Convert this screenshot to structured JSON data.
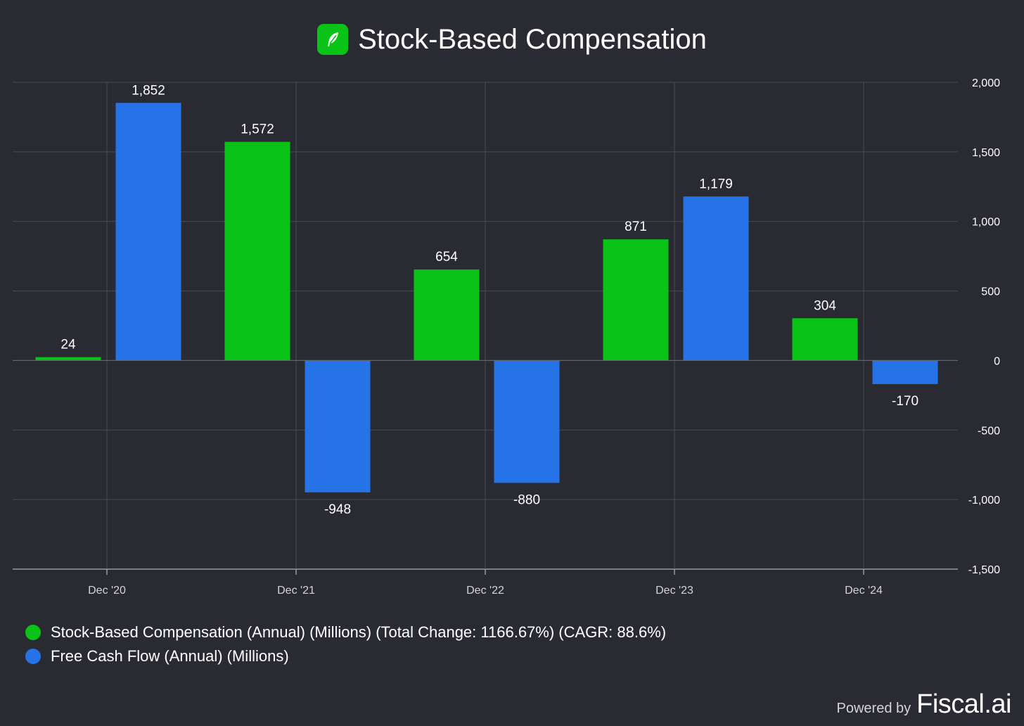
{
  "header": {
    "title": "Stock-Based Compensation"
  },
  "legend": {
    "items": [
      {
        "label": "Stock-Based Compensation (Annual) (Millions) (Total Change: 1166.67%) (CAGR: 88.6%)",
        "color": "#09c416"
      },
      {
        "label": "Free Cash Flow (Annual) (Millions)",
        "color": "#2673e8"
      }
    ]
  },
  "footer": {
    "powered_by": "Powered by",
    "brand": "Fiscal.ai"
  },
  "chart_data": {
    "type": "bar",
    "categories": [
      "Dec '20",
      "Dec '21",
      "Dec '22",
      "Dec '23",
      "Dec '24"
    ],
    "series": [
      {
        "name": "Stock-Based Compensation (Annual) (Millions)",
        "color": "#09c416",
        "values": [
          24,
          1572,
          654,
          871,
          304
        ]
      },
      {
        "name": "Free Cash Flow (Annual) (Millions)",
        "color": "#2673e8",
        "values": [
          1852,
          -948,
          -880,
          1179,
          -170
        ]
      }
    ],
    "data_labels": {
      "series_0": [
        "24",
        "1,572",
        "654",
        "871",
        "304"
      ],
      "series_1": [
        "1,852",
        "-948",
        "-880",
        "1,179",
        "-170"
      ]
    },
    "y_ticks": [
      2000,
      1500,
      1000,
      500,
      0,
      -500,
      -1000,
      -1500
    ],
    "y_tick_labels": [
      "2,000",
      "1,500",
      "1,000",
      "500",
      "0",
      "-500",
      "-1,000",
      "-1,500"
    ],
    "ylim": [
      -1500,
      2000
    ],
    "y_axis_position": "right",
    "grid": true,
    "legend_position": "bottom-left"
  }
}
